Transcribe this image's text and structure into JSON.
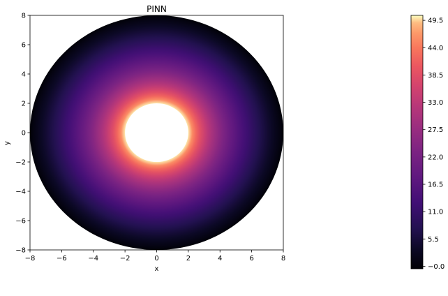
{
  "chart_data": {
    "type": "heatmap",
    "title": "PINN",
    "xlabel": "x",
    "ylabel": "y",
    "xlim": [
      -8,
      8
    ],
    "ylim": [
      -8,
      8
    ],
    "x_ticks": [
      -8,
      -6,
      -4,
      -2,
      0,
      2,
      4,
      6,
      8
    ],
    "y_ticks": [
      -8,
      -6,
      -4,
      -2,
      0,
      2,
      4,
      6,
      8
    ],
    "x_tick_labels": [
      "−8",
      "−6",
      "−4",
      "−2",
      "0",
      "2",
      "4",
      "6",
      "8"
    ],
    "y_tick_labels": [
      "−8",
      "−6",
      "−4",
      "−2",
      "0",
      "2",
      "4",
      "6",
      "8"
    ],
    "colormap": "magma",
    "grid": false,
    "domain": {
      "shape": "annulus",
      "inner_radius": 2,
      "outer_radius": 8
    },
    "field": {
      "description": "radially symmetric solution, maximum at inner boundary, zero at outer boundary",
      "value_at_inner_radius": 50,
      "value_at_outer_radius": 0
    },
    "colorbar": {
      "range": [
        -0.5,
        50.5
      ],
      "ticks": [
        -0.0,
        5.5,
        11.0,
        16.5,
        22.0,
        27.5,
        33.0,
        38.5,
        44.0,
        49.5
      ],
      "tick_labels": [
        "−0.0",
        "5.5",
        "11.0",
        "16.5",
        "22.0",
        "27.5",
        "33.0",
        "38.5",
        "44.0",
        "49.5"
      ]
    }
  }
}
